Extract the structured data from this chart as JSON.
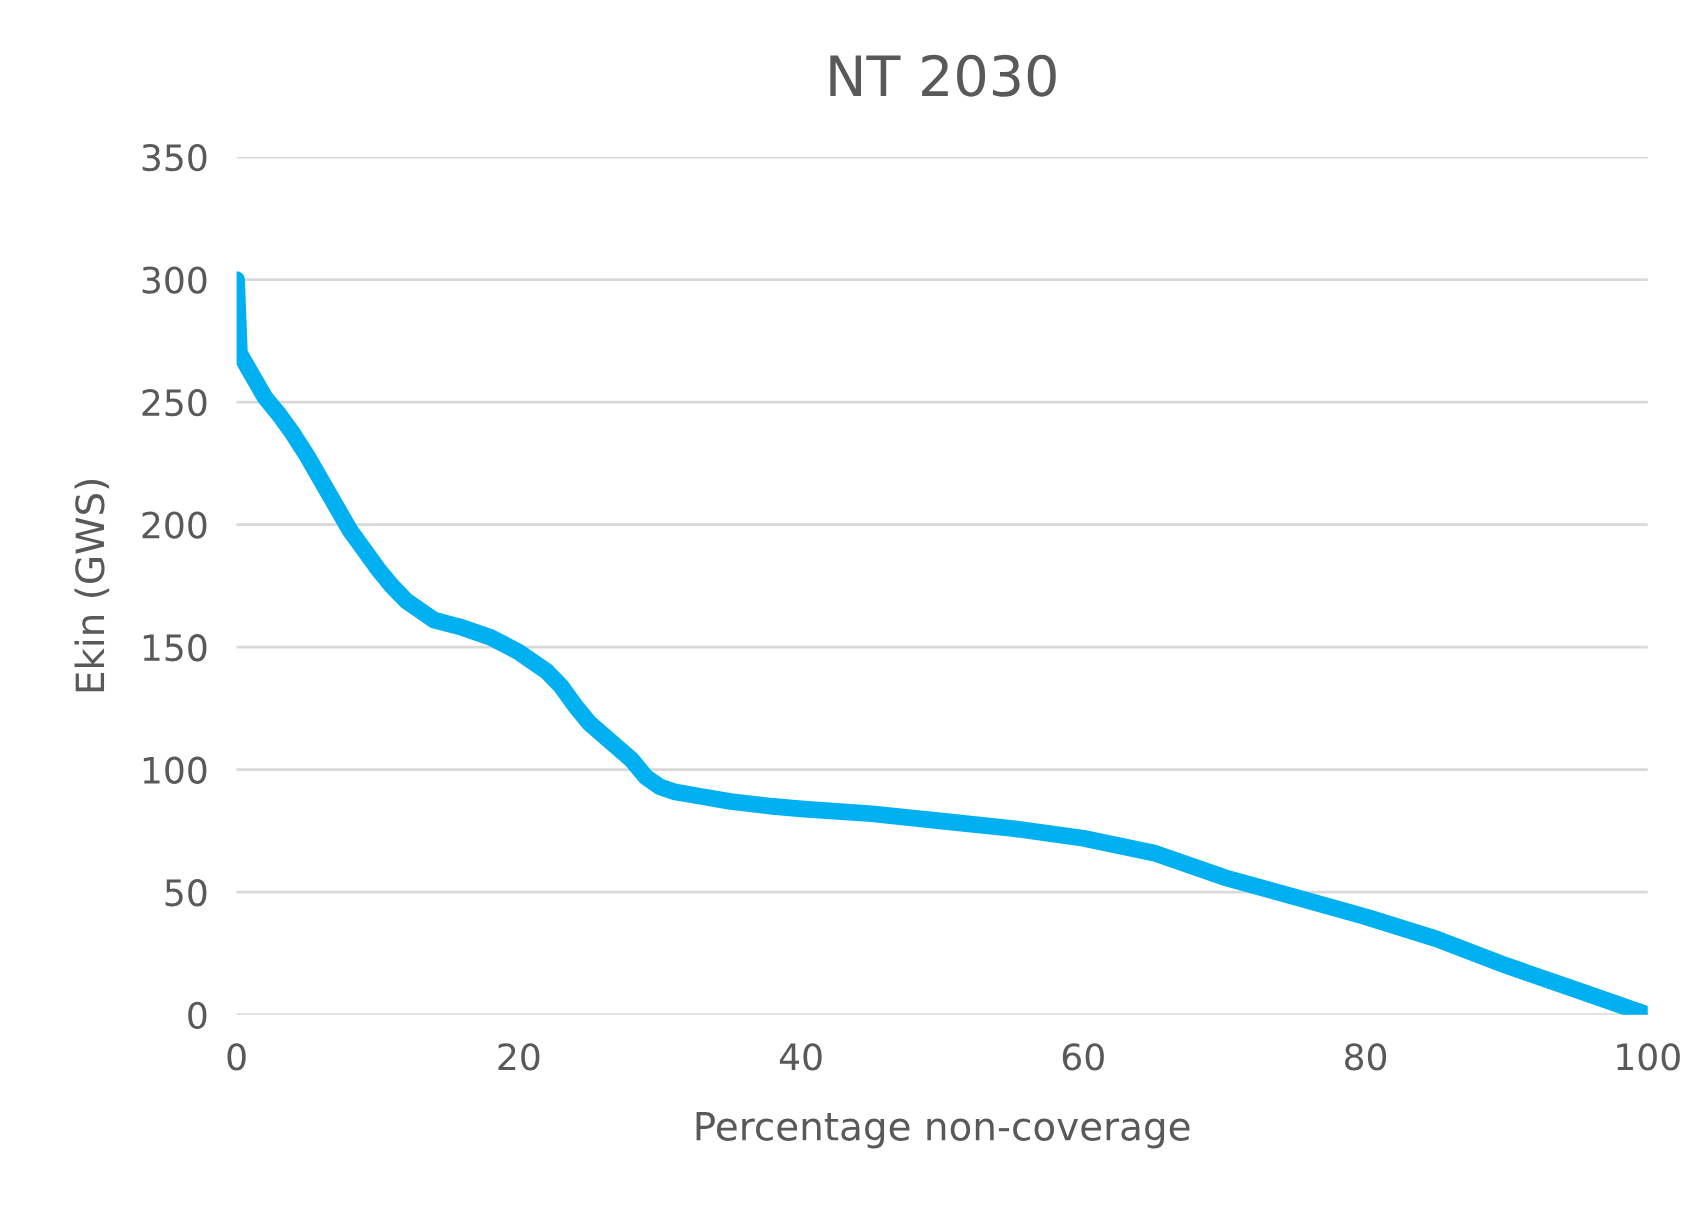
{
  "chart_data": {
    "type": "line",
    "title": "NT 2030",
    "xlabel": "Percentage non-coverage",
    "ylabel": "Ekin (GWS)",
    "xlim": [
      0,
      100
    ],
    "xticks": [
      0,
      20,
      40,
      60,
      80,
      100
    ],
    "ylim": [
      0,
      350
    ],
    "yticks": [
      0,
      50,
      100,
      150,
      200,
      250,
      300,
      350
    ],
    "grid": "y",
    "series": [
      {
        "color": "#00b0f0",
        "x": [
          0,
          0.2,
          1,
          2,
          3,
          4,
          5,
          6,
          7,
          8,
          9,
          10,
          11,
          12,
          13,
          14,
          16,
          18,
          20,
          22,
          23,
          24,
          25,
          26,
          27,
          28,
          29,
          30,
          31,
          33,
          35,
          38,
          40,
          45,
          50,
          55,
          60,
          65,
          70,
          75,
          80,
          85,
          90,
          95,
          100
        ],
        "values": [
          300,
          270,
          262,
          252,
          245,
          237,
          228,
          218,
          208,
          198,
          190,
          182,
          175,
          169,
          165,
          161,
          158,
          154,
          148,
          140,
          134,
          126,
          119,
          114,
          109,
          104,
          97,
          93,
          91,
          89,
          87,
          85,
          84,
          82,
          79,
          76,
          72,
          66,
          56,
          48,
          40,
          31,
          20,
          10,
          0
        ]
      }
    ]
  }
}
